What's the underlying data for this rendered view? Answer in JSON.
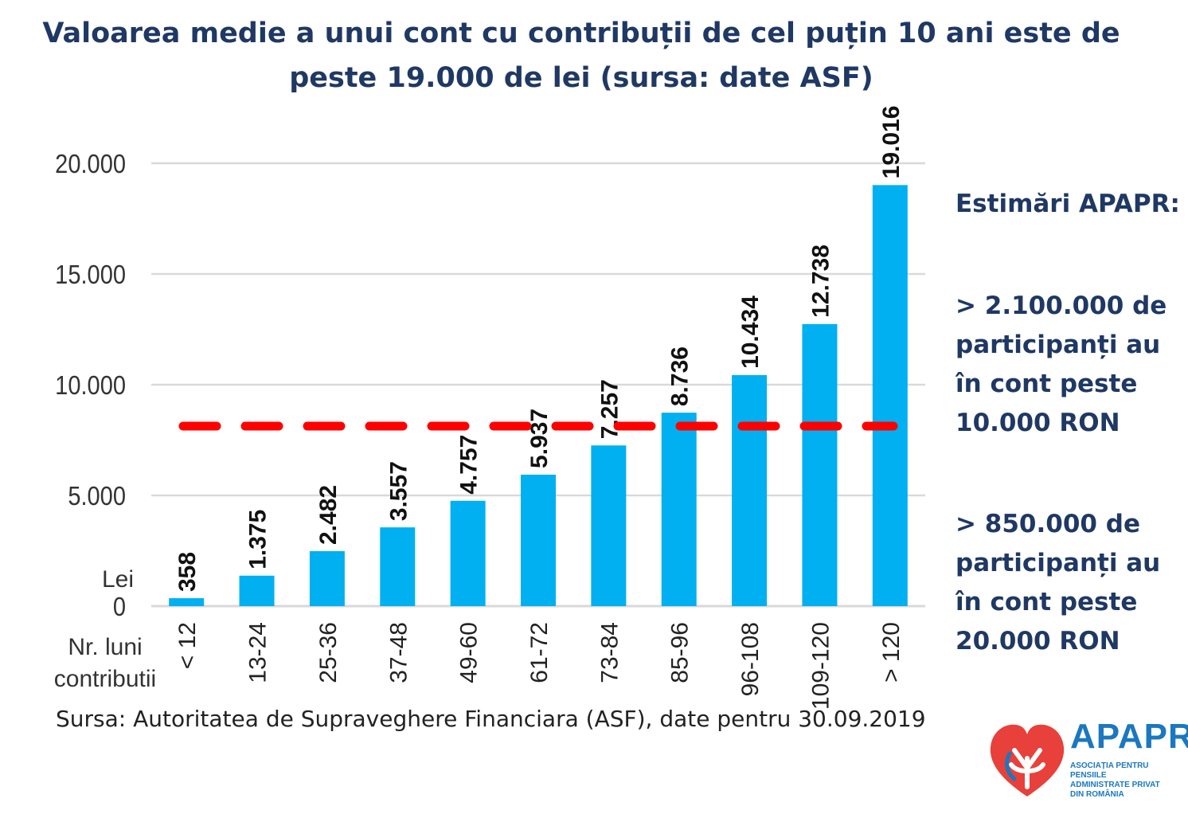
{
  "title": "Valoarea medie a unui cont cu contribuții de cel puțin 10 ani este de peste 19.000 de lei (sursa: date ASF)",
  "source": "Sursa: Autoritatea de Supraveghere Financiara (ASF), date pentru 30.09.2019",
  "side": {
    "heading": "Estimări APAPR:",
    "block1": [
      "> 2.100.000 de",
      "participanți au",
      "în cont peste",
      "10.000 RON"
    ],
    "block2": [
      "> 850.000 de",
      "participanți au",
      "în cont peste",
      "20.000 RON"
    ]
  },
  "logo": {
    "name": "APAPR",
    "tagline": [
      "ASOCIAȚIA PENTRU PENSIILE",
      "ADMINISTRATE PRIVAT",
      "DIN ROMÂNIA"
    ],
    "icon": "heart-tree-icon",
    "colors": {
      "heart": "#e8403a",
      "text": "#1b78bf"
    }
  },
  "chart_data": {
    "type": "bar",
    "categories": [
      "< 12",
      "13-24",
      "25-36",
      "37-48",
      "49-60",
      "61-72",
      "73-84",
      "85-96",
      "96-108",
      "109-120",
      "> 120"
    ],
    "values": [
      358,
      1375,
      2482,
      3557,
      4757,
      5937,
      7257,
      8736,
      10434,
      12738,
      19016
    ],
    "data_labels": [
      "358",
      "1.375",
      "2.482",
      "3.557",
      "4.757",
      "5.937",
      "7.257",
      "8.736",
      "10.434",
      "12.738",
      "19.016"
    ],
    "ylabel": "Lei",
    "xlabel": [
      "Nr. luni",
      "contributii"
    ],
    "yticks": [
      0,
      5000,
      10000,
      15000,
      20000
    ],
    "ytick_labels": [
      "0",
      "5.000",
      "10.000",
      "15.000",
      "20.000"
    ],
    "ylim": [
      0,
      20000
    ],
    "grid": true,
    "reference_line": {
      "style": "dashed",
      "color": "#ff0000"
    },
    "colors": {
      "bar": "#00b0f0",
      "grid": "#d9d9d9"
    }
  }
}
